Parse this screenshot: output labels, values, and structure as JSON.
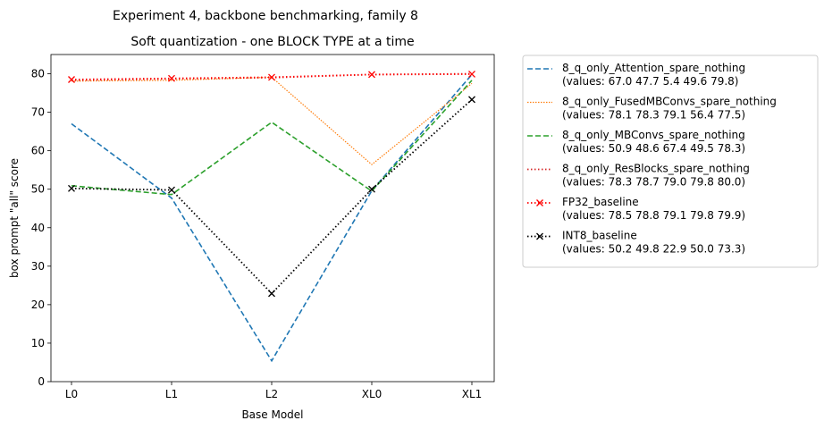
{
  "chart_data": {
    "type": "line",
    "suptitle": "Experiment 4, backbone benchmarking, family 8",
    "title": "Soft quantization - one BLOCK TYPE at a time",
    "xlabel": "Base Model",
    "ylabel": "box prompt \"all\" score",
    "categories": [
      "L0",
      "L1",
      "L2",
      "XL0",
      "XL1"
    ],
    "ylim": [
      0,
      85
    ],
    "yticks": [
      0,
      10,
      20,
      30,
      40,
      50,
      60,
      70,
      80
    ],
    "grid": false,
    "legend_position": "outside-right",
    "series": [
      {
        "name": "8_q_only_Attention_spare_nothing",
        "legend_values": "(values: 67.0 47.7 5.4 49.6 79.8)",
        "values": [
          67.0,
          47.7,
          5.4,
          49.6,
          79.8
        ],
        "color": "#1f77b4",
        "dash": "6,3",
        "width": 1.6,
        "marker": "none"
      },
      {
        "name": "8_q_only_FusedMBConvs_spare_nothing",
        "legend_values": "(values: 78.1 78.3 79.1 56.4 77.5)",
        "values": [
          78.1,
          78.3,
          79.1,
          56.4,
          77.5
        ],
        "color": "#ff7f0e",
        "dash": "1.5,1.5",
        "width": 1.2,
        "marker": "none"
      },
      {
        "name": "8_q_only_MBConvs_spare_nothing",
        "legend_values": "(values: 50.9 48.6 67.4 49.5 78.3)",
        "values": [
          50.9,
          48.6,
          67.4,
          49.5,
          78.3
        ],
        "color": "#2ca02c",
        "dash": "6,3",
        "width": 1.6,
        "marker": "none"
      },
      {
        "name": "8_q_only_ResBlocks_spare_nothing",
        "legend_values": "(values: 78.3 78.7 79.0 79.8 80.0)",
        "values": [
          78.3,
          78.7,
          79.0,
          79.8,
          80.0
        ],
        "color": "#d62728",
        "dash": "1.5,2.5",
        "width": 1.8,
        "marker": "none"
      },
      {
        "name": "FP32_baseline",
        "legend_values": "(values: 78.5 78.8 79.1 79.8 79.9)",
        "values": [
          78.5,
          78.8,
          79.1,
          79.8,
          79.9
        ],
        "color": "#ff0000",
        "dash": "1.5,2.5",
        "width": 1.8,
        "marker": "x"
      },
      {
        "name": "INT8_baseline",
        "legend_values": "(values: 50.2 49.8 22.9 50.0 73.3)",
        "values": [
          50.2,
          49.8,
          22.9,
          50.0,
          73.3
        ],
        "color": "#000000",
        "dash": "1.5,2.5",
        "width": 1.8,
        "marker": "x"
      }
    ]
  }
}
